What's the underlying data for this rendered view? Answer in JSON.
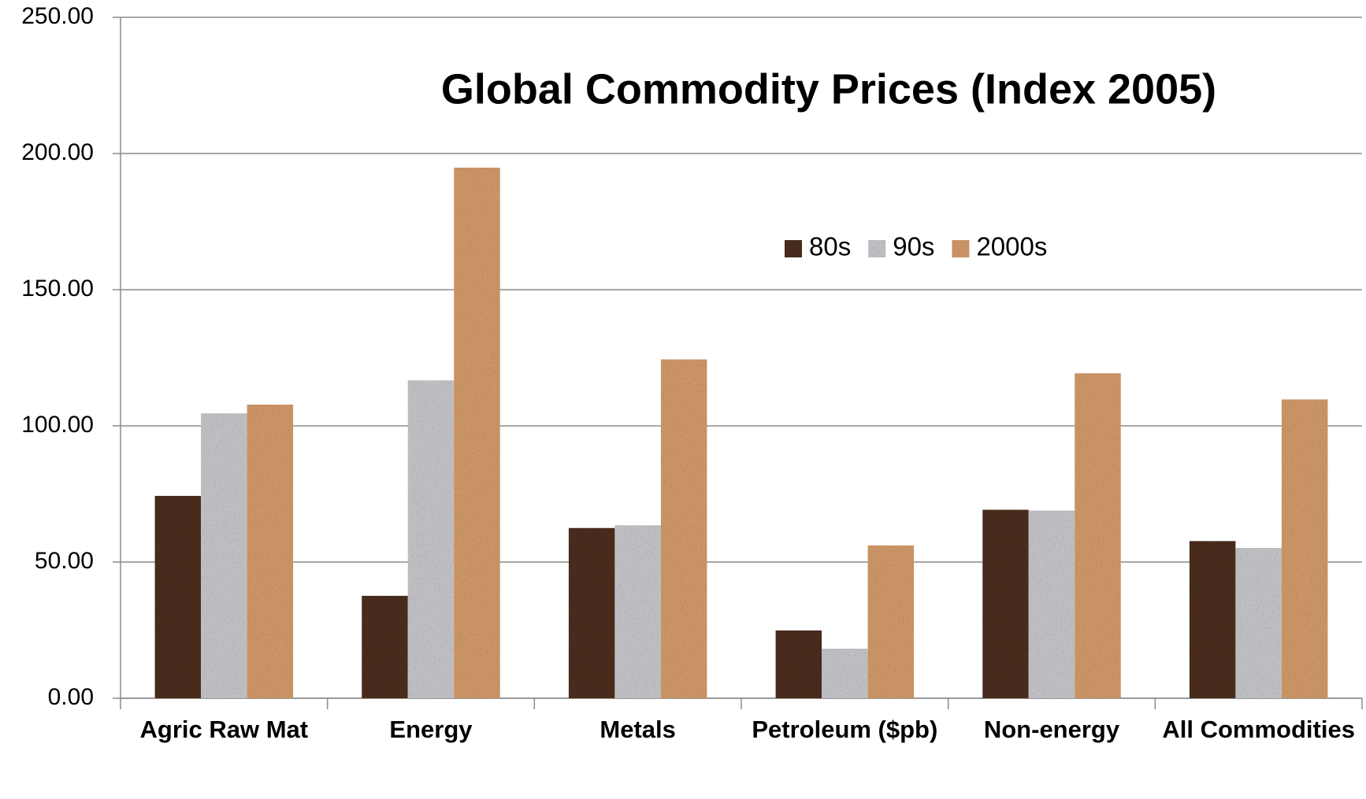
{
  "chart_data": {
    "type": "bar",
    "title": "Global Commodity Prices (Index 2005)",
    "categories": [
      "Agric Raw Mat",
      "Energy",
      "Metals",
      "Petroleum ($pb)",
      "Non-energy",
      "All Commodities"
    ],
    "series": [
      {
        "name": "80s",
        "color": "#4a2e1e",
        "values": [
          74.3,
          37.6,
          62.5,
          24.9,
          69.2,
          57.7
        ]
      },
      {
        "name": "90s",
        "color": "#c4c4c8",
        "values": [
          104.6,
          116.7,
          63.5,
          18.2,
          68.9,
          55.2
        ]
      },
      {
        "name": "2000s",
        "color": "#d09868",
        "values": [
          107.8,
          194.8,
          124.4,
          56.1,
          119.3,
          109.7
        ]
      }
    ],
    "ylim": [
      0,
      250
    ],
    "yticks": [
      {
        "value": 0,
        "label": "0.00"
      },
      {
        "value": 50,
        "label": "50.00"
      },
      {
        "value": 100,
        "label": "100.00"
      },
      {
        "value": 150,
        "label": "150.00"
      },
      {
        "value": 200,
        "label": "200.00"
      },
      {
        "value": 250,
        "label": "250.00"
      }
    ],
    "grid": true,
    "legend": "top-right"
  }
}
